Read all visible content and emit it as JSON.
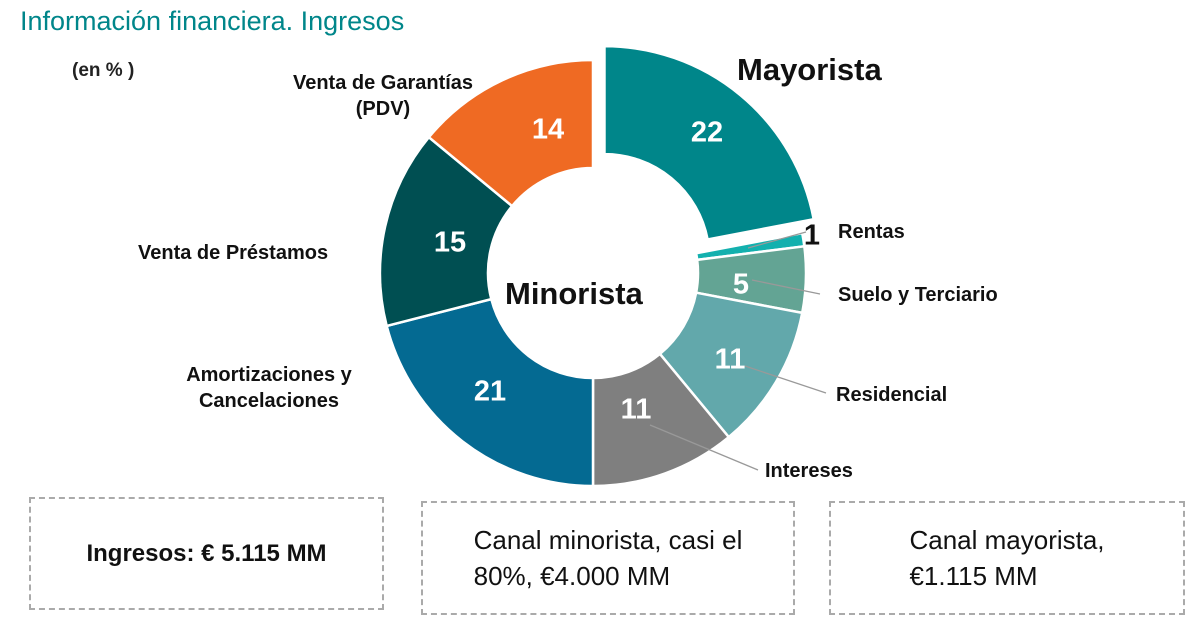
{
  "title": "Información financiera. Ingresos",
  "unit": "(en % )",
  "chart_data": {
    "type": "pie",
    "donut": true,
    "start": "top",
    "direction": "clockwise",
    "center_label": "Minorista",
    "slices": [
      {
        "label": "Mayorista",
        "value": 22,
        "color": "#00868a",
        "exploded": true
      },
      {
        "label": "Rentas",
        "value": 1,
        "color": "#13b0ae"
      },
      {
        "label": "Suelo y Terciario",
        "value": 5,
        "color": "#63a494"
      },
      {
        "label": "Residencial",
        "value": 11,
        "color": "#62a8ab"
      },
      {
        "label": "Intereses",
        "value": 11,
        "color": "#7f7f7f"
      },
      {
        "label": "Amortizaciones y Cancelaciones",
        "value": 21,
        "color": "#046a92"
      },
      {
        "label": "Venta de Préstamos",
        "value": 15,
        "color": "#004f52"
      },
      {
        "label": "Venta de Garantías (PDV)",
        "value": 14,
        "color": "#ef6a23"
      }
    ]
  },
  "labels": {
    "mayorista": "Mayorista",
    "rentas": "Rentas",
    "suelo": "Suelo y Terciario",
    "residencial": "Residencial",
    "intereses": "Intereses",
    "amort1": "Amortizaciones y",
    "amort2": "Cancelaciones",
    "prestamos": "Venta de Préstamos",
    "garantias1": "Venta de Garantías",
    "garantias2": "(PDV)"
  },
  "boxes": {
    "ingresos": "Ingresos: € 5.115 MM",
    "minorista1": "Canal minorista, casi el",
    "minorista2": "80%, €4.000 MM",
    "mayorista1": "Canal mayorista,",
    "mayorista2": "€1.115 MM"
  }
}
